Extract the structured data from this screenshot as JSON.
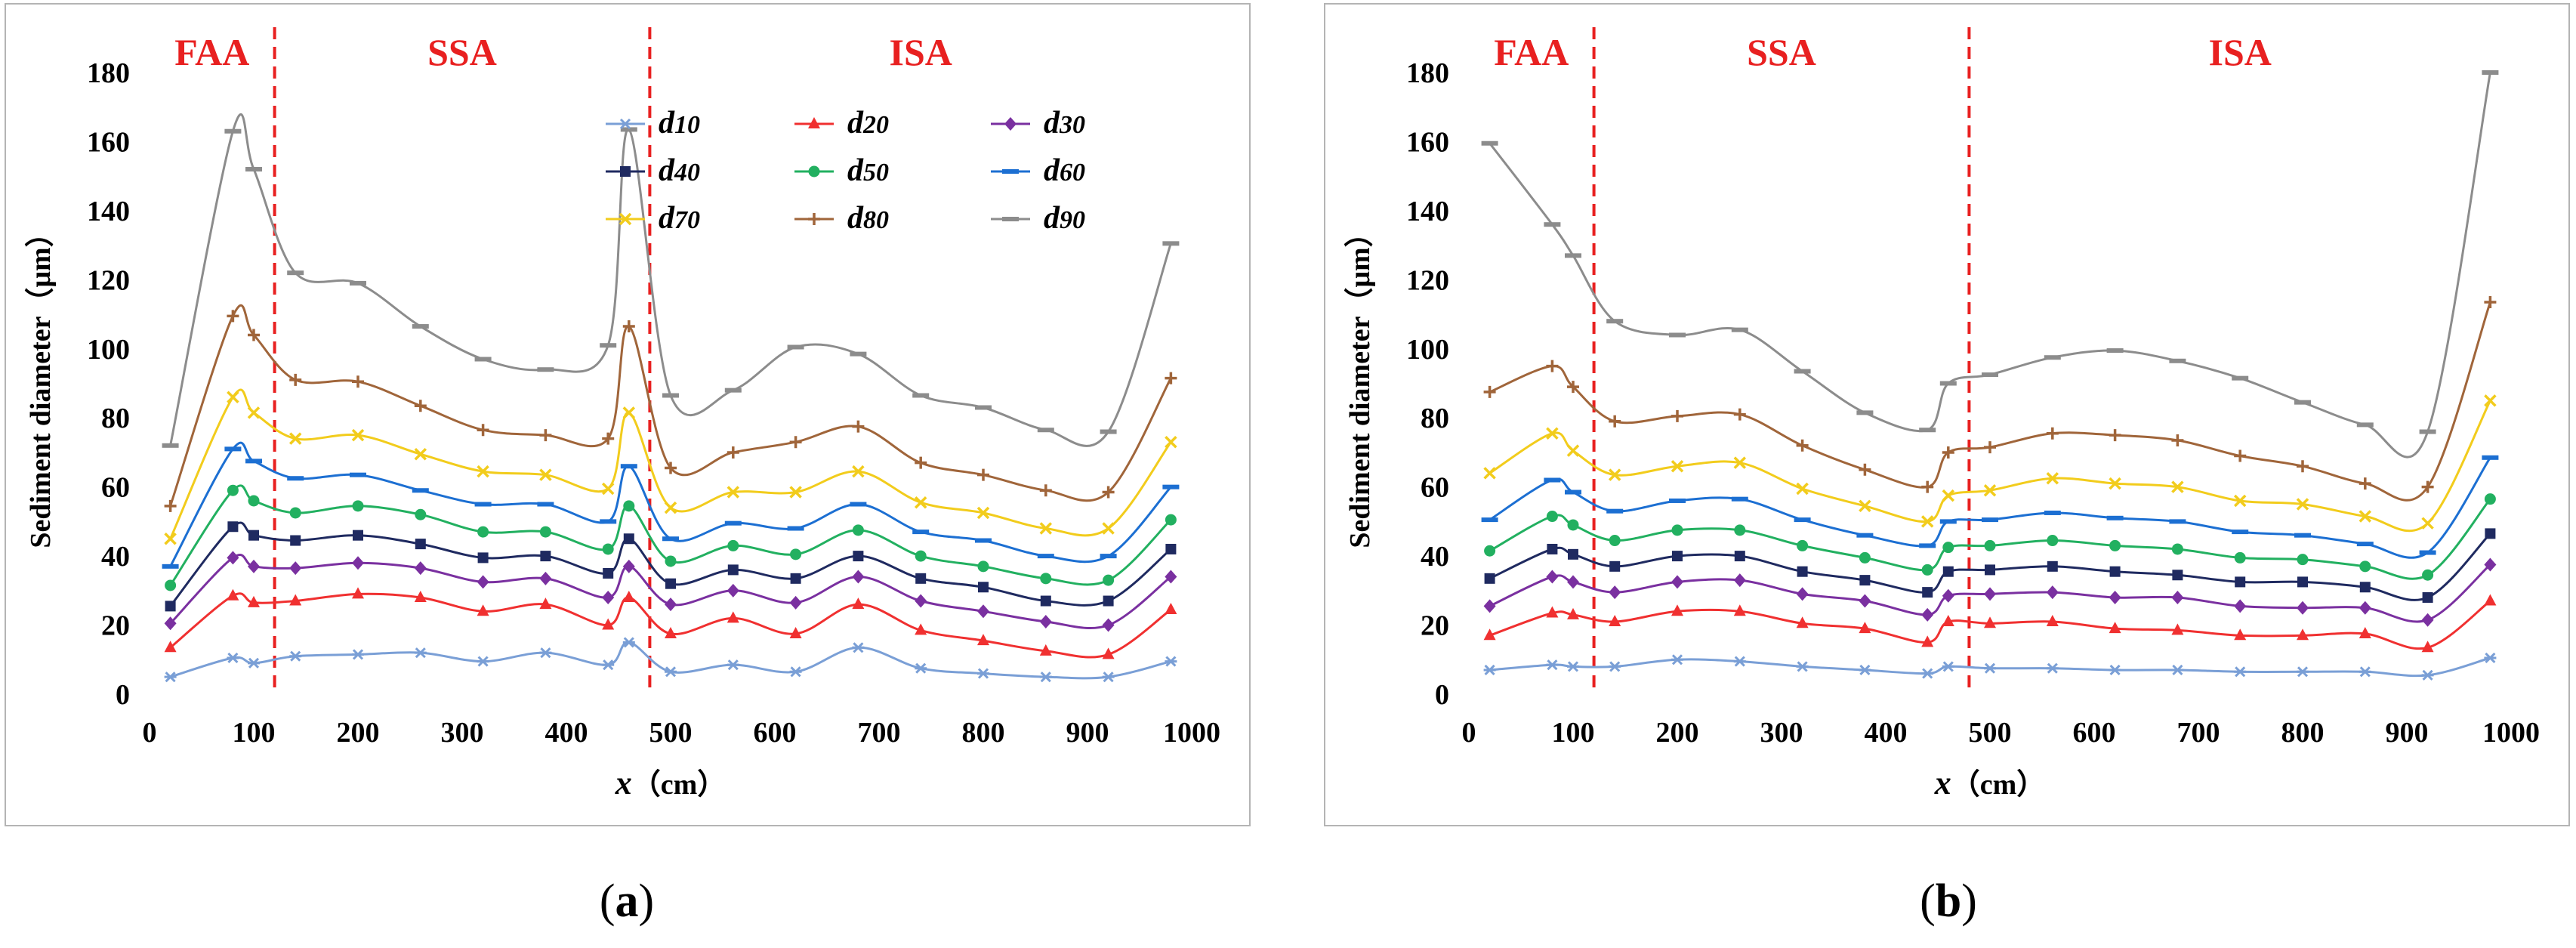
{
  "panels": [
    {
      "caption_open": "(",
      "caption_label": "a",
      "caption_close": ")"
    },
    {
      "caption_open": "(",
      "caption_label": "b",
      "caption_close": ")"
    }
  ],
  "chart_data": [
    {
      "type": "line",
      "panel": "a",
      "xlabel_var": "x",
      "xlabel_unit": "（cm）",
      "ylabel": "Sediment diameter（μm）",
      "xlim": [
        0,
        1000
      ],
      "ylim": [
        0,
        180
      ],
      "xticks": [
        0,
        100,
        200,
        300,
        400,
        500,
        600,
        700,
        800,
        900,
        1000
      ],
      "yticks": [
        0,
        20,
        40,
        60,
        80,
        100,
        120,
        140,
        160,
        180
      ],
      "zones": [
        {
          "label": "FAA",
          "x": 60
        },
        {
          "label": "SSA",
          "x": 300
        },
        {
          "label": "ISA",
          "x": 740
        }
      ],
      "divider_x": [
        120,
        480
      ],
      "legend_position": "top-center",
      "x": [
        20,
        80,
        100,
        140,
        200,
        260,
        320,
        380,
        440,
        460,
        500,
        560,
        620,
        680,
        740,
        800,
        860,
        920,
        980
      ],
      "series": [
        {
          "name": "d10",
          "color": "#7a9fd6",
          "marker": "asterisk",
          "values": [
            5,
            10.5,
            9,
            11,
            11.5,
            12,
            9.5,
            12,
            8.5,
            15,
            6.5,
            8.5,
            6.5,
            13.5,
            7.5,
            6,
            5,
            5,
            9.5
          ]
        },
        {
          "name": "d20",
          "color": "#f03030",
          "marker": "triangle",
          "values": [
            13.5,
            28.5,
            26.5,
            27,
            29,
            28,
            24,
            26,
            20,
            28,
            17.5,
            22,
            17.5,
            26,
            18.5,
            15.5,
            12.5,
            11.5,
            24.5
          ]
        },
        {
          "name": "d30",
          "color": "#7a30a0",
          "marker": "diamond",
          "values": [
            20.5,
            39.5,
            37,
            36.5,
            38,
            36.5,
            32.5,
            33.5,
            28,
            37,
            26,
            30,
            26.5,
            34,
            27,
            24,
            21,
            20,
            34
          ]
        },
        {
          "name": "d40",
          "color": "#1f2a60",
          "marker": "square",
          "values": [
            25.5,
            48.5,
            46,
            44.5,
            46,
            43.5,
            39.5,
            40,
            35,
            45,
            32,
            36,
            33.5,
            40,
            33.5,
            31,
            27,
            27,
            42
          ]
        },
        {
          "name": "d50",
          "color": "#22b060",
          "marker": "circle",
          "values": [
            31.5,
            59,
            56,
            52.5,
            54.5,
            52,
            47,
            47,
            42,
            54.5,
            38.5,
            43,
            40.5,
            47.5,
            40,
            37,
            33.5,
            33,
            50.5
          ]
        },
        {
          "name": "d60",
          "color": "#1c6fd2",
          "marker": "dash",
          "values": [
            37,
            71,
            67.5,
            62.5,
            63.5,
            59,
            55,
            55,
            50,
            66,
            45,
            49.5,
            48,
            55,
            47,
            44.5,
            40,
            40,
            60
          ]
        },
        {
          "name": "d70",
          "color": "#f2cc1c",
          "marker": "x",
          "values": [
            45,
            86,
            81.5,
            74,
            75,
            69.5,
            64.5,
            63.5,
            59.5,
            81.5,
            54,
            58.5,
            58.5,
            64.5,
            55.5,
            52.5,
            48,
            48,
            73
          ]
        },
        {
          "name": "d80",
          "color": "#a0653a",
          "marker": "plus",
          "values": [
            54.5,
            109.5,
            104,
            91,
            90.5,
            83.5,
            76.5,
            75,
            74,
            106.5,
            65.5,
            70,
            73,
            77.5,
            67,
            63.5,
            59,
            58.5,
            91.5
          ]
        },
        {
          "name": "d90",
          "color": "#8c8c8c",
          "marker": "dash",
          "values": [
            72,
            163,
            152,
            122,
            119,
            106.5,
            97,
            94,
            101,
            163.5,
            86.5,
            88,
            100.5,
            98.5,
            86.5,
            83,
            76.5,
            76,
            130.5
          ]
        }
      ]
    },
    {
      "type": "line",
      "panel": "b",
      "xlabel_var": "x",
      "xlabel_unit": "（cm）",
      "ylabel": "Sediment diameter（μm）",
      "xlim": [
        0,
        1000
      ],
      "ylim": [
        0,
        180
      ],
      "xticks": [
        0,
        100,
        200,
        300,
        400,
        500,
        600,
        700,
        800,
        900,
        1000
      ],
      "yticks": [
        0,
        20,
        40,
        60,
        80,
        100,
        120,
        140,
        160,
        180
      ],
      "zones": [
        {
          "label": "FAA",
          "x": 60
        },
        {
          "label": "SSA",
          "x": 300
        },
        {
          "label": "ISA",
          "x": 740
        }
      ],
      "divider_x": [
        120,
        480
      ],
      "x": [
        20,
        80,
        100,
        140,
        200,
        260,
        320,
        380,
        440,
        460,
        500,
        560,
        620,
        680,
        740,
        800,
        860,
        920,
        980
      ],
      "series": [
        {
          "name": "d10",
          "color": "#7a9fd6",
          "marker": "asterisk",
          "values": [
            7,
            8.5,
            8,
            8,
            10,
            9.5,
            8,
            7,
            6,
            8,
            7.5,
            7.5,
            7,
            7,
            6.5,
            6.5,
            6.5,
            5.5,
            10.5
          ]
        },
        {
          "name": "d20",
          "color": "#f03030",
          "marker": "triangle",
          "values": [
            17,
            23.5,
            23,
            21,
            24,
            24,
            20.5,
            19,
            15,
            21,
            20.5,
            21,
            19,
            18.5,
            17,
            17,
            17.5,
            13.5,
            27
          ]
        },
        {
          "name": "d30",
          "color": "#7a30a0",
          "marker": "diamond",
          "values": [
            25.5,
            34,
            32.5,
            29.5,
            32.5,
            33,
            29,
            27,
            23,
            28.5,
            29,
            29.5,
            28,
            28,
            25.5,
            25,
            25,
            21.5,
            37.5
          ]
        },
        {
          "name": "d40",
          "color": "#1f2a60",
          "marker": "square",
          "values": [
            33.5,
            42,
            40.5,
            37,
            40,
            40,
            35.5,
            33,
            29.5,
            35.5,
            36,
            37,
            35.5,
            34.5,
            32.5,
            32.5,
            31,
            28,
            46.5
          ]
        },
        {
          "name": "d50",
          "color": "#22b060",
          "marker": "circle",
          "values": [
            41.5,
            51.5,
            49,
            44.5,
            47.5,
            47.5,
            43,
            39.5,
            36,
            42.5,
            43,
            44.5,
            43,
            42,
            39.5,
            39,
            37,
            34.5,
            56.5
          ]
        },
        {
          "name": "d60",
          "color": "#1c6fd2",
          "marker": "dash",
          "values": [
            50.5,
            62,
            58.5,
            53,
            56,
            56.5,
            50.5,
            46,
            43,
            50,
            50.5,
            52.5,
            51,
            50,
            47,
            46,
            43.5,
            41,
            68.5
          ]
        },
        {
          "name": "d70",
          "color": "#f2cc1c",
          "marker": "x",
          "values": [
            64,
            75.5,
            70.5,
            63.5,
            66,
            67,
            59.5,
            54.5,
            50,
            57.5,
            59,
            62.5,
            61,
            60,
            56,
            55,
            51.5,
            49.5,
            85
          ]
        },
        {
          "name": "d80",
          "color": "#a0653a",
          "marker": "plus",
          "values": [
            87.5,
            95,
            89,
            79,
            80.5,
            81,
            72,
            65,
            60,
            70,
            71.5,
            75.5,
            75,
            73.5,
            69,
            66,
            61,
            60,
            113.5
          ]
        },
        {
          "name": "d90",
          "color": "#8c8c8c",
          "marker": "dash",
          "values": [
            159.5,
            136,
            127,
            108,
            104,
            105.5,
            93.5,
            81.5,
            76.5,
            90,
            92.5,
            97.5,
            99.5,
            96.5,
            91.5,
            84.5,
            78,
            76,
            180
          ]
        }
      ]
    }
  ]
}
